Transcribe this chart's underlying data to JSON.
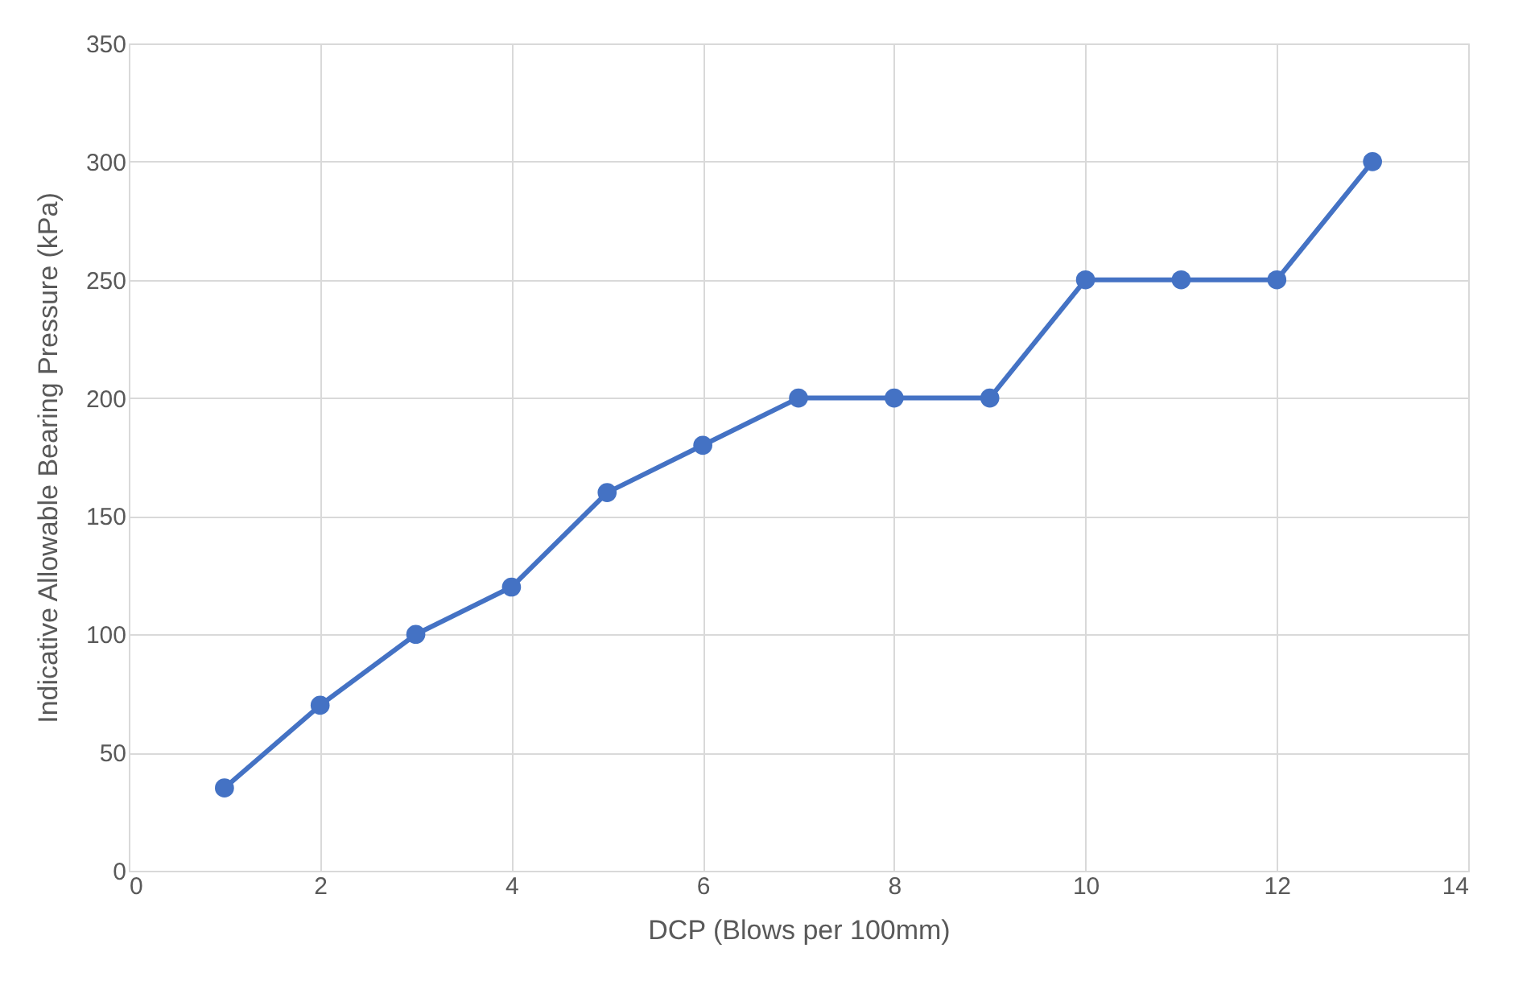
{
  "chart_data": {
    "type": "line",
    "xlabel": "DCP (Blows per 100mm)",
    "ylabel": "Indicative Allowable Bearing Pressure (kPa)",
    "x": [
      1,
      2,
      3,
      4,
      5,
      6,
      7,
      8,
      9,
      10,
      11,
      12,
      13
    ],
    "series": [
      {
        "color": "#4472c4",
        "values": [
          35,
          70,
          100,
          120,
          160,
          180,
          200,
          200,
          200,
          250,
          250,
          250,
          300
        ]
      }
    ],
    "xlim": [
      0,
      14
    ],
    "xticks": [
      0,
      2,
      4,
      6,
      8,
      10,
      12,
      14
    ],
    "ylim": [
      0,
      350
    ],
    "yticks": [
      0,
      50,
      100,
      150,
      200,
      250,
      300,
      350
    ],
    "grid": true,
    "marker": "circle",
    "line_style": "solid"
  }
}
